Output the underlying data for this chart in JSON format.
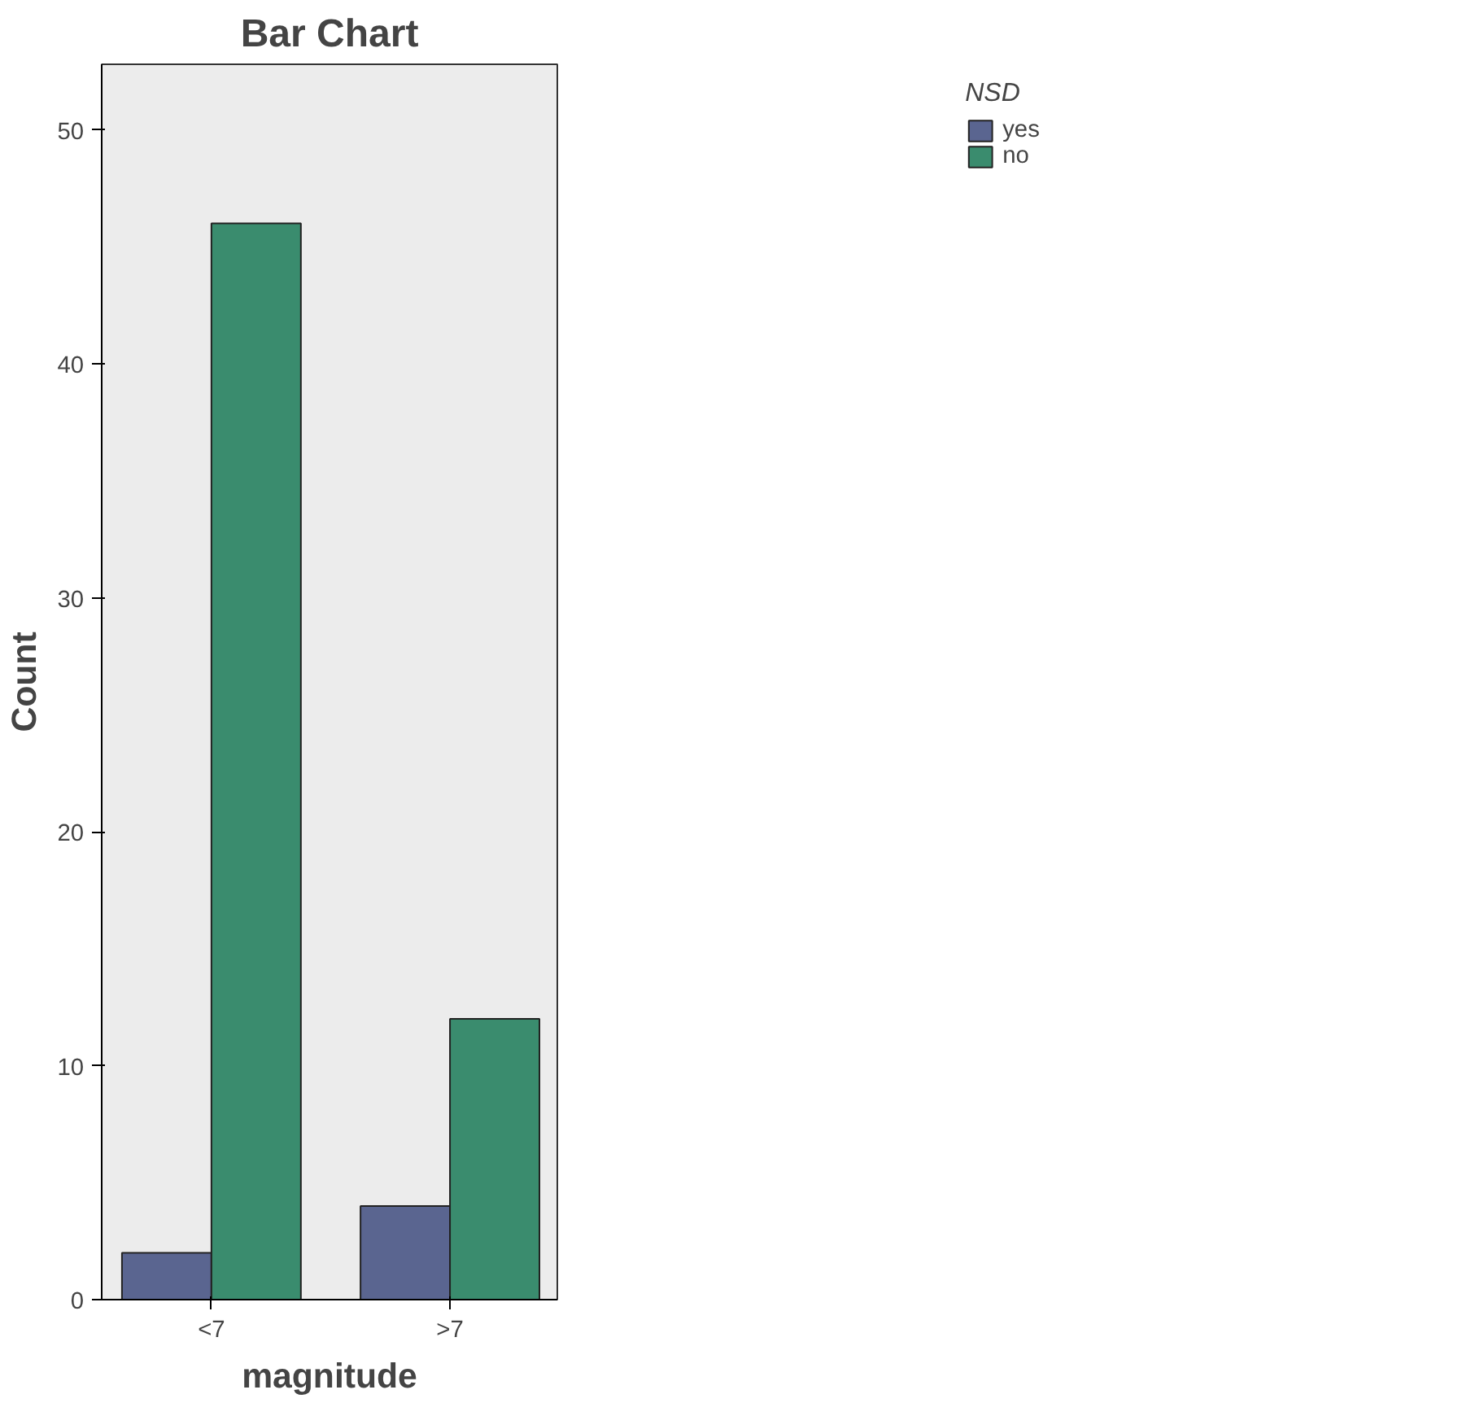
{
  "chart_data": {
    "type": "bar",
    "title": "Bar Chart",
    "xlabel": "magnitude",
    "ylabel": "Count",
    "legend_title": "NSD",
    "categories": [
      "<7",
      ">7"
    ],
    "series": [
      {
        "name": "yes",
        "color": "#5a6590",
        "values": [
          2,
          4
        ]
      },
      {
        "name": "no",
        "color": "#3a8c6e",
        "values": [
          46,
          12
        ]
      }
    ],
    "ylim": [
      0,
      52.8
    ],
    "yticks": [
      0,
      10,
      20,
      30,
      40,
      50
    ],
    "grid": false,
    "legend": "top right"
  }
}
